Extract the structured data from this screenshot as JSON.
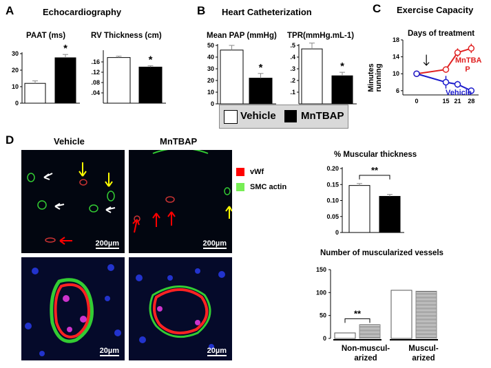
{
  "panels": {
    "A": "A",
    "B": "B",
    "C": "C",
    "D": "D"
  },
  "titles": {
    "echo": "Echocardiography",
    "cath": "Heart Catheterization",
    "exercise": "Exercise Capacity",
    "paat": "PAAT (ms)",
    "rv": "RV Thickness (cm)",
    "mpap": "Mean PAP (mmHg)",
    "tpr": "TPR(mmHg.mL-1)",
    "days": "Days of treatment",
    "muscular": "% Muscular thickness",
    "nvessels": "Number of muscularized vessels"
  },
  "legend": {
    "vehicle": "Vehicle",
    "mntbap": "MnTBAP"
  },
  "exercise_labels": {
    "ylabel": "Minutes running",
    "mntbap": "MnTBA P",
    "vehicle": "Vehicle"
  },
  "micro": {
    "vehicle": "Vehicle",
    "mntbap": "MnTBAP",
    "vwf": "vWf",
    "smc": "SMC actin",
    "scale_large": "200µm",
    "scale_small": "20µm"
  },
  "nm_labels": {
    "nonmusc": "Non-muscul- arized",
    "musc": "Muscul- arized"
  },
  "colors": {
    "vwf": "#ff0000",
    "smc": "#33cc33",
    "mntbap_line": "#e02020",
    "vehicle_line": "#1a1acc"
  },
  "chart_data": [
    {
      "type": "bar",
      "title": "PAAT (ms)",
      "categories": [
        "Vehicle",
        "MnTBAP"
      ],
      "values": [
        12,
        27.5
      ],
      "errors": [
        1.5,
        2
      ],
      "ylim": [
        0,
        30
      ],
      "yticks": [
        0,
        10,
        20,
        30
      ],
      "yticklabels": [
        "0",
        "10",
        "20",
        "30"
      ],
      "significance": "*"
    },
    {
      "type": "bar",
      "title": "RV Thickness (cm)",
      "categories": [
        "Vehicle",
        "MnTBAP"
      ],
      "values": [
        0.177,
        0.14
      ],
      "errors": [
        0.005,
        0.005
      ],
      "ylim": [
        0,
        0.2
      ],
      "yticks": [
        0.04,
        0.08,
        0.12,
        0.16
      ],
      "yticklabels": [
        ".04",
        ".08",
        ".12",
        ".16"
      ],
      "significance": "*"
    },
    {
      "type": "bar",
      "title": "Mean PAP (mmHg)",
      "categories": [
        "Vehicle",
        "MnTBAP"
      ],
      "values": [
        46,
        22
      ],
      "errors": [
        4,
        4
      ],
      "ylim": [
        0,
        50
      ],
      "yticks": [
        0,
        10,
        20,
        30,
        40,
        50
      ],
      "yticklabels": [
        "0",
        "10",
        "20",
        "30",
        "40",
        "50"
      ],
      "significance": "*"
    },
    {
      "type": "bar",
      "title": "TPR(mmHg.mL-1)",
      "categories": [
        "Vehicle",
        "MnTBAP"
      ],
      "values": [
        0.47,
        0.24
      ],
      "errors": [
        0.05,
        0.03
      ],
      "ylim": [
        0,
        0.5
      ],
      "yticks": [
        0.1,
        0.2,
        0.3,
        0.4,
        0.5
      ],
      "yticklabels": [
        ".1",
        ".2",
        ".3",
        ".4",
        ".5"
      ],
      "significance": "*"
    },
    {
      "type": "line",
      "title": "Exercise Capacity",
      "subtitle": "Days of treatment",
      "xlabel": "Days of treatment",
      "ylabel": "Minutes running",
      "x": [
        0,
        15,
        21,
        28
      ],
      "xlim": [
        0,
        30
      ],
      "ylim": [
        5,
        18
      ],
      "yticks": [
        6,
        10,
        14,
        18
      ],
      "series": [
        {
          "name": "MnTBA P",
          "values": [
            10,
            11,
            15,
            16
          ],
          "errors": [
            0.7,
            0.6,
            1.0,
            1.1
          ]
        },
        {
          "name": "Vehicle",
          "values": [
            10,
            8,
            7.5,
            6
          ],
          "errors": [
            0.7,
            1.5,
            0.8,
            0.4
          ]
        }
      ]
    },
    {
      "type": "bar",
      "title": "% Muscular thickness",
      "categories": [
        "Vehicle",
        "MnTBAP"
      ],
      "values": [
        0.147,
        0.113
      ],
      "errors": [
        0.006,
        0.006
      ],
      "ylim": [
        0,
        0.2
      ],
      "yticks": [
        0,
        0.05,
        0.1,
        0.15,
        0.2
      ],
      "yticklabels": [
        "0",
        "0.05",
        "0.10",
        "0.15",
        "0.20"
      ],
      "significance": "**"
    },
    {
      "type": "bar",
      "title": "Number of muscularized vessels",
      "categories": [
        "Non-muscul- arized",
        "Muscul- arized"
      ],
      "series": [
        {
          "name": "Vehicle",
          "values": [
            12,
            105
          ]
        },
        {
          "name": "MnTBAP",
          "values": [
            30,
            103
          ]
        }
      ],
      "ylim": [
        0,
        150
      ],
      "yticks": [
        0,
        50,
        100,
        150
      ],
      "yticklabels": [
        "0",
        "50",
        "100",
        "150"
      ],
      "significance": "**"
    }
  ]
}
